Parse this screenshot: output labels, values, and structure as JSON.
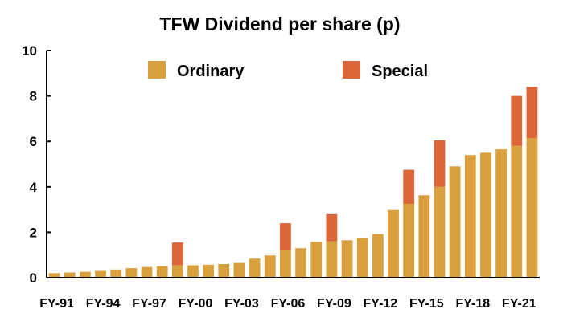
{
  "chart_data": {
    "type": "bar",
    "stacked": true,
    "title": "TFW Dividend per share (p)",
    "xlabel": "",
    "ylabel": "",
    "ylim": [
      0,
      10
    ],
    "yticks": [
      "0",
      "2",
      "4",
      "6",
      "8",
      "10"
    ],
    "grid": false,
    "legend_position": "top",
    "categories": [
      "FY-91",
      "FY-92",
      "FY-93",
      "FY-94",
      "FY-95",
      "FY-96",
      "FY-97",
      "FY-98",
      "FY-99",
      "FY-00",
      "FY-01",
      "FY-02",
      "FY-03",
      "FY-04",
      "FY-05",
      "FY-06",
      "FY-07",
      "FY-08",
      "FY-09",
      "FY-10",
      "FY-11",
      "FY-12",
      "FY-13",
      "FY-14",
      "FY-15",
      "FY-16",
      "FY-17",
      "FY-18",
      "FY-19",
      "FY-20",
      "FY-21",
      "FY-22"
    ],
    "xtick_labels": [
      "FY-91",
      "FY-94",
      "FY-97",
      "FY-00",
      "FY-03",
      "FY-06",
      "FY-09",
      "FY-12",
      "FY-15",
      "FY-18",
      "FY-21"
    ],
    "series": [
      {
        "name": "Ordinary",
        "color": "#D9A03D",
        "values": [
          0.2,
          0.23,
          0.26,
          0.3,
          0.36,
          0.42,
          0.47,
          0.51,
          0.55,
          0.55,
          0.57,
          0.6,
          0.65,
          0.84,
          0.98,
          1.2,
          1.3,
          1.58,
          1.6,
          1.65,
          1.76,
          1.92,
          2.98,
          3.25,
          3.63,
          4.0,
          4.9,
          5.4,
          5.5,
          5.65,
          5.8,
          6.15
        ]
      },
      {
        "name": "Special",
        "color": "#DC6639",
        "values": [
          0,
          0,
          0,
          0,
          0,
          0,
          0,
          0,
          1.0,
          0,
          0,
          0,
          0,
          0,
          0,
          1.2,
          0,
          0,
          1.2,
          0,
          0,
          0,
          0,
          1.5,
          0,
          2.05,
          0,
          0,
          0,
          0,
          2.2,
          2.25
        ]
      }
    ]
  }
}
